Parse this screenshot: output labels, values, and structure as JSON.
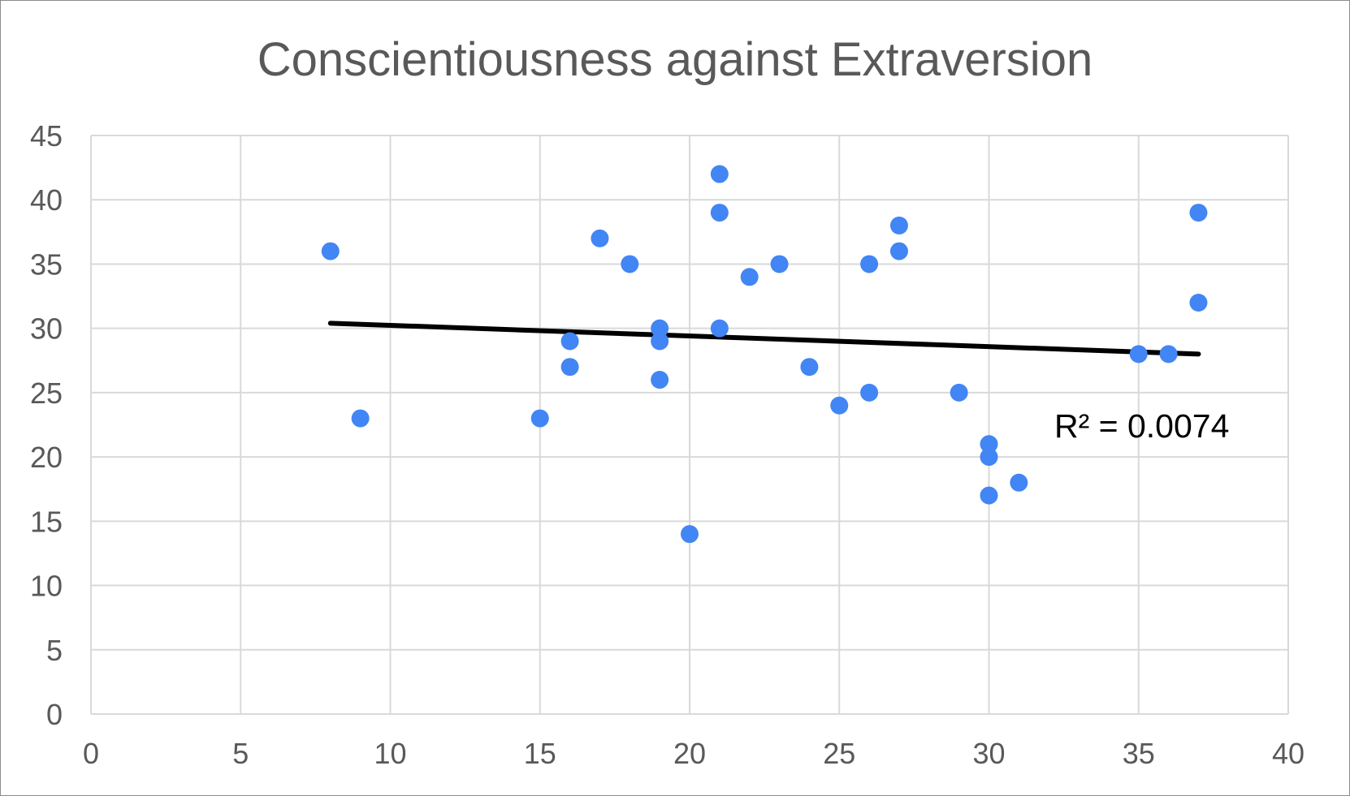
{
  "chart_data": {
    "type": "scatter",
    "title": "Conscientiousness against Extraversion",
    "xlabel": "",
    "ylabel": "",
    "xlim": [
      0,
      40
    ],
    "ylim": [
      0,
      45
    ],
    "x_ticks": [
      "0",
      "5",
      "10",
      "15",
      "20",
      "25",
      "30",
      "35",
      "40"
    ],
    "y_ticks": [
      "0",
      "5",
      "10",
      "15",
      "20",
      "25",
      "30",
      "35",
      "40",
      "45"
    ],
    "grid": true,
    "legend": "none",
    "series": [
      {
        "color": "#4285f4",
        "points": [
          {
            "x": 8,
            "y": 36
          },
          {
            "x": 9,
            "y": 23
          },
          {
            "x": 15,
            "y": 23
          },
          {
            "x": 16,
            "y": 29
          },
          {
            "x": 16,
            "y": 27
          },
          {
            "x": 17,
            "y": 37
          },
          {
            "x": 18,
            "y": 35
          },
          {
            "x": 19,
            "y": 30
          },
          {
            "x": 19,
            "y": 29
          },
          {
            "x": 19,
            "y": 26
          },
          {
            "x": 20,
            "y": 14
          },
          {
            "x": 21,
            "y": 42
          },
          {
            "x": 21,
            "y": 39
          },
          {
            "x": 21,
            "y": 30
          },
          {
            "x": 22,
            "y": 34
          },
          {
            "x": 23,
            "y": 35
          },
          {
            "x": 24,
            "y": 27
          },
          {
            "x": 25,
            "y": 24
          },
          {
            "x": 26,
            "y": 35
          },
          {
            "x": 26,
            "y": 25
          },
          {
            "x": 27,
            "y": 38
          },
          {
            "x": 27,
            "y": 36
          },
          {
            "x": 29,
            "y": 25
          },
          {
            "x": 30,
            "y": 21
          },
          {
            "x": 30,
            "y": 20
          },
          {
            "x": 30,
            "y": 17
          },
          {
            "x": 31,
            "y": 18
          },
          {
            "x": 35,
            "y": 28
          },
          {
            "x": 36,
            "y": 28
          },
          {
            "x": 37,
            "y": 39
          },
          {
            "x": 37,
            "y": 32
          }
        ]
      }
    ],
    "trendline": {
      "type": "linear",
      "color": "#000000",
      "from": {
        "x": 8,
        "y": 30.4
      },
      "to": {
        "x": 37,
        "y": 28.0
      },
      "r_squared_label": "R² = 0.0074"
    }
  }
}
